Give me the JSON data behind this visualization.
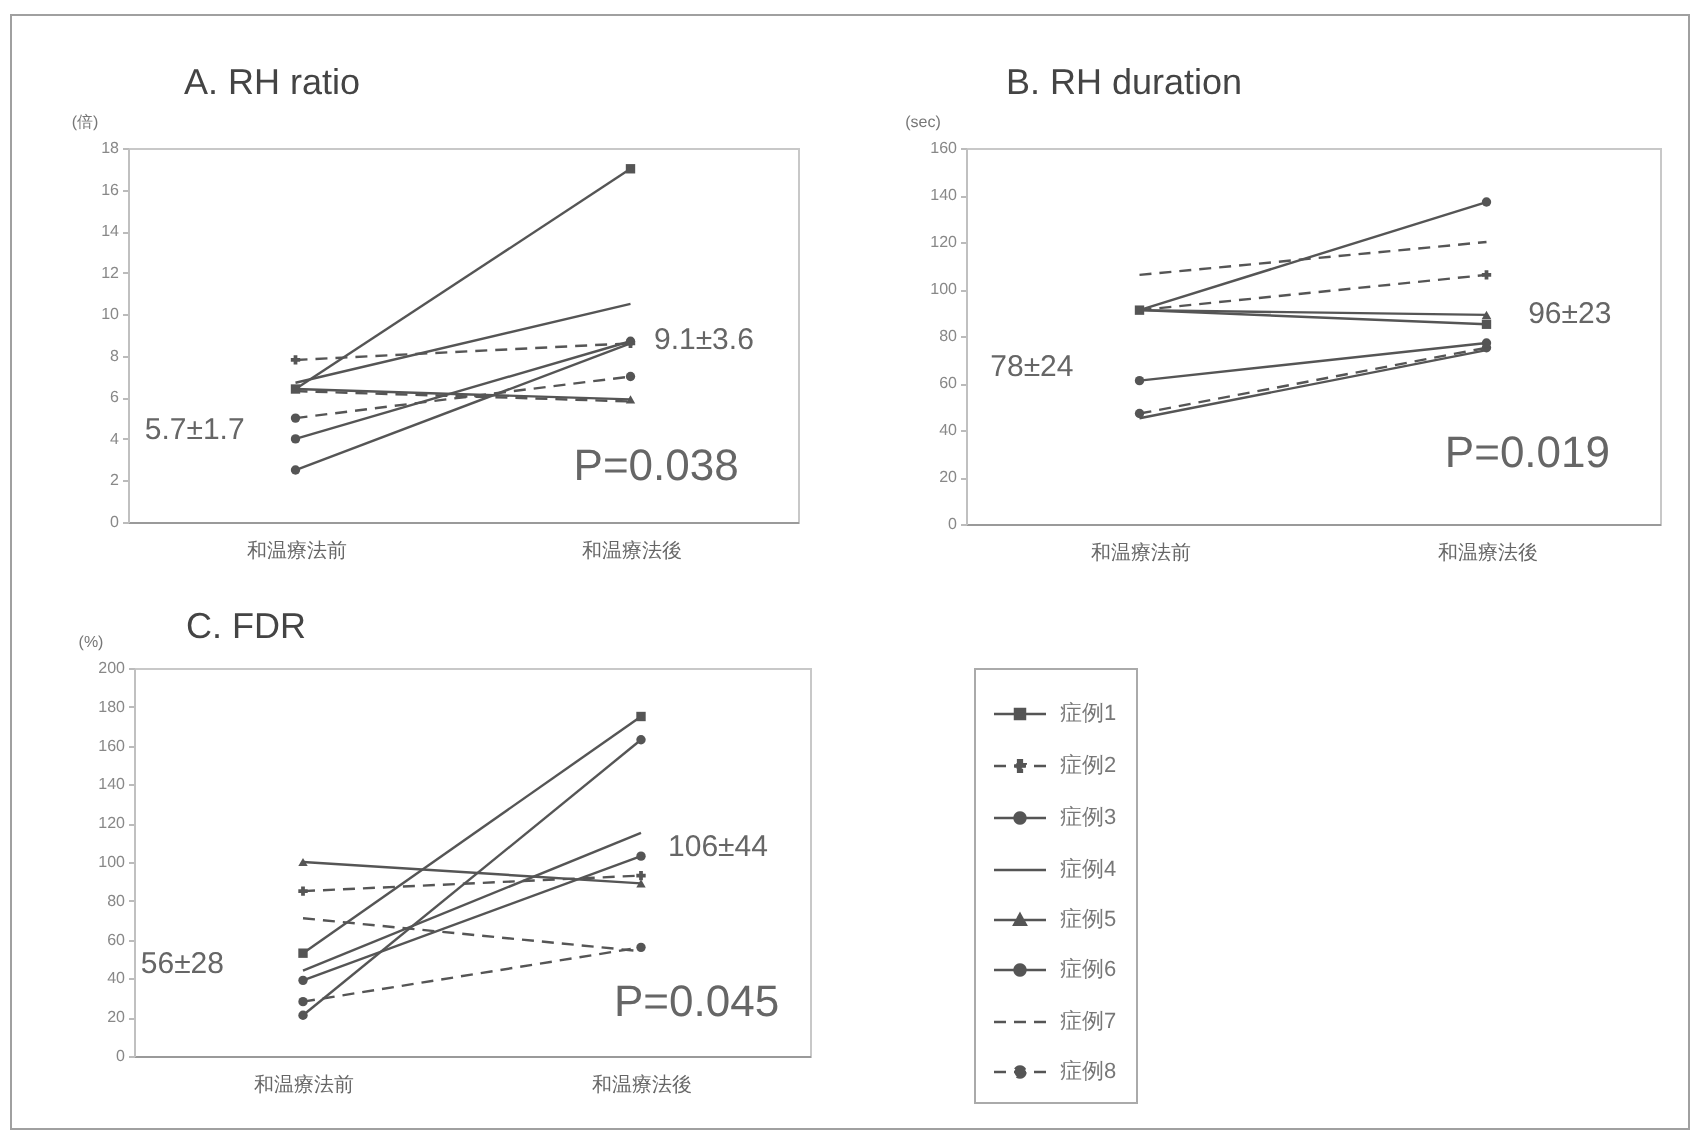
{
  "chart_data": [
    {
      "type": "line",
      "title": "A. RH ratio",
      "ylabel": "(倍)",
      "categories": [
        "和温療法前",
        "和温療法後"
      ],
      "ylim": [
        0,
        18
      ],
      "yticks": [
        0,
        2,
        4,
        6,
        8,
        10,
        12,
        14,
        16,
        18
      ],
      "series": [
        {
          "color": "#555555",
          "values": [
            6.4,
            17
          ],
          "marker": "square",
          "line_style": "solid"
        },
        {
          "color": "#555555",
          "values": [
            7.8,
            8.6
          ],
          "marker": "cross",
          "line_style": "dashed"
        },
        {
          "color": "#555555",
          "values": [
            4.0,
            8.7
          ],
          "marker": "circle",
          "line_style": "solid"
        },
        {
          "color": "#555555",
          "values": [
            6.7,
            10.5
          ],
          "marker": "none",
          "line_style": "solid"
        },
        {
          "color": "#555555",
          "values": [
            6.4,
            5.9
          ],
          "marker": "triangle",
          "line_style": "solid"
        },
        {
          "color": "#555555",
          "values": [
            2.5,
            8.6
          ],
          "marker": "circle",
          "line_style": "solid"
        },
        {
          "color": "#555555",
          "values": [
            6.3,
            5.8
          ],
          "marker": "none",
          "line_style": "dashed"
        },
        {
          "color": "#555555",
          "values": [
            5.0,
            7.0
          ],
          "marker": "circle",
          "line_style": "dashed"
        }
      ],
      "annotations": [
        "5.7±1.7",
        "9.1±3.6",
        "P=0.038"
      ]
    },
    {
      "type": "line",
      "title": "B. RH duration",
      "ylabel": "(sec)",
      "categories": [
        "和温療法前",
        "和温療法後"
      ],
      "ylim": [
        0,
        160
      ],
      "yticks": [
        0,
        20,
        40,
        60,
        80,
        100,
        120,
        140,
        160
      ],
      "series": [
        {
          "color": "#555555",
          "values": [
            91,
            85
          ],
          "marker": "square",
          "line_style": "solid"
        },
        {
          "color": "#555555",
          "values": [
            91,
            106
          ],
          "marker": "cross",
          "line_style": "dashed"
        },
        {
          "color": "#555555",
          "values": [
            61,
            77
          ],
          "marker": "circle",
          "line_style": "solid"
        },
        {
          "color": "#555555",
          "values": [
            45,
            74
          ],
          "marker": "none",
          "line_style": "solid"
        },
        {
          "color": "#555555",
          "values": [
            91,
            89
          ],
          "marker": "triangle",
          "line_style": "solid"
        },
        {
          "color": "#555555",
          "values": [
            91,
            137
          ],
          "marker": "circle",
          "line_style": "solid"
        },
        {
          "color": "#555555",
          "values": [
            106,
            120
          ],
          "marker": "none",
          "line_style": "dashed"
        },
        {
          "color": "#555555",
          "values": [
            47,
            75
          ],
          "marker": "circle",
          "line_style": "dashed"
        }
      ],
      "annotations": [
        "78±24",
        "96±23",
        "P=0.019"
      ]
    },
    {
      "type": "line",
      "title": "C. FDR",
      "ylabel": "(%)",
      "categories": [
        "和温療法前",
        "和温療法後"
      ],
      "ylim": [
        0,
        200
      ],
      "yticks": [
        0,
        20,
        40,
        60,
        80,
        100,
        120,
        140,
        160,
        180,
        200
      ],
      "legend": "right",
      "series": [
        {
          "name": "症例1",
          "color": "#555555",
          "values": [
            53,
            175
          ],
          "marker": "square",
          "line_style": "solid"
        },
        {
          "name": "症例2",
          "color": "#555555",
          "values": [
            85,
            93
          ],
          "marker": "cross",
          "line_style": "dashed"
        },
        {
          "name": "症例3",
          "color": "#555555",
          "values": [
            39,
            103
          ],
          "marker": "circle",
          "line_style": "solid"
        },
        {
          "name": "症例4",
          "color": "#555555",
          "values": [
            44,
            115
          ],
          "marker": "none",
          "line_style": "solid"
        },
        {
          "name": "症例5",
          "color": "#555555",
          "values": [
            100,
            89
          ],
          "marker": "triangle",
          "line_style": "solid"
        },
        {
          "name": "症例6",
          "color": "#555555",
          "values": [
            21,
            163
          ],
          "marker": "circle",
          "line_style": "solid"
        },
        {
          "name": "症例7",
          "color": "#555555",
          "values": [
            71,
            54
          ],
          "marker": "none",
          "line_style": "dashed"
        },
        {
          "name": "症例8",
          "color": "#555555",
          "values": [
            28,
            56
          ],
          "marker": "circle",
          "line_style": "dashed"
        }
      ],
      "annotations": [
        "56±28",
        "106±44",
        "P=0.045"
      ]
    }
  ]
}
